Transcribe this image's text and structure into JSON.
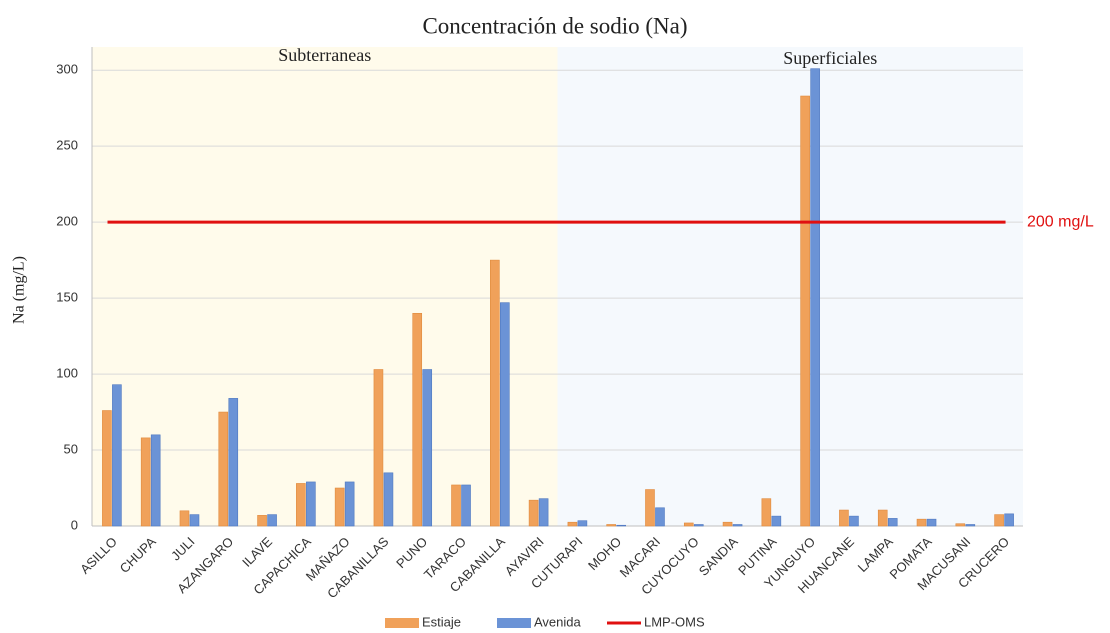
{
  "chart_data": {
    "type": "bar",
    "title": "Concentración de sodio (Na)",
    "y_label": "Na (mg/L)",
    "categories": [
      "ASILLO",
      "CHUPA",
      "JULI",
      "AZANGARO",
      "ILAVE",
      "CAPACHICA",
      "MAÑAZO",
      "CABANILLAS",
      "PUNO",
      "TARACO",
      "CABANILLA",
      "AYAVIRI",
      "CUTURAPI",
      "MOHO",
      "MACARI",
      "CUYOCUYO",
      "SANDIA",
      "PUTINA",
      "YUNGUYO",
      "HUANCANE",
      "LAMPA",
      "POMATA",
      "MACUSANI",
      "CRUCERO"
    ],
    "series": [
      {
        "name": "Estiaje",
        "color": "#f0a15a",
        "values": [
          76,
          58,
          10,
          75,
          7,
          28,
          25,
          103,
          140,
          27,
          175,
          17,
          2.5,
          1,
          24,
          2,
          2.5,
          18,
          283,
          10.5,
          10.5,
          4.5,
          1.5,
          7.5
        ]
      },
      {
        "name": "Avenida",
        "color": "#6b93d6",
        "values": [
          93,
          60,
          7.5,
          84,
          7.5,
          29,
          29,
          35,
          103,
          27,
          147,
          18,
          3.5,
          0.5,
          12,
          1,
          1,
          6.5,
          301,
          6.5,
          5,
          4.5,
          1,
          8
        ]
      }
    ],
    "threshold": {
      "name": "LMP-OMS",
      "value": 200,
      "label": "200 mg/L",
      "color": "#e01010"
    },
    "regions": [
      {
        "label": "Subterraneas",
        "start": "ASILLO",
        "end": "AYAVIRI",
        "color": "#fffbeb"
      },
      {
        "label": "Superficiales",
        "start": "CUTURAPI",
        "end": "CRUCERO",
        "color": "#f5f9fd"
      }
    ],
    "ylim": [
      0,
      310
    ],
    "yticks": [
      0,
      50,
      100,
      150,
      200,
      250,
      300
    ],
    "grid": true,
    "legend": "bottom"
  }
}
